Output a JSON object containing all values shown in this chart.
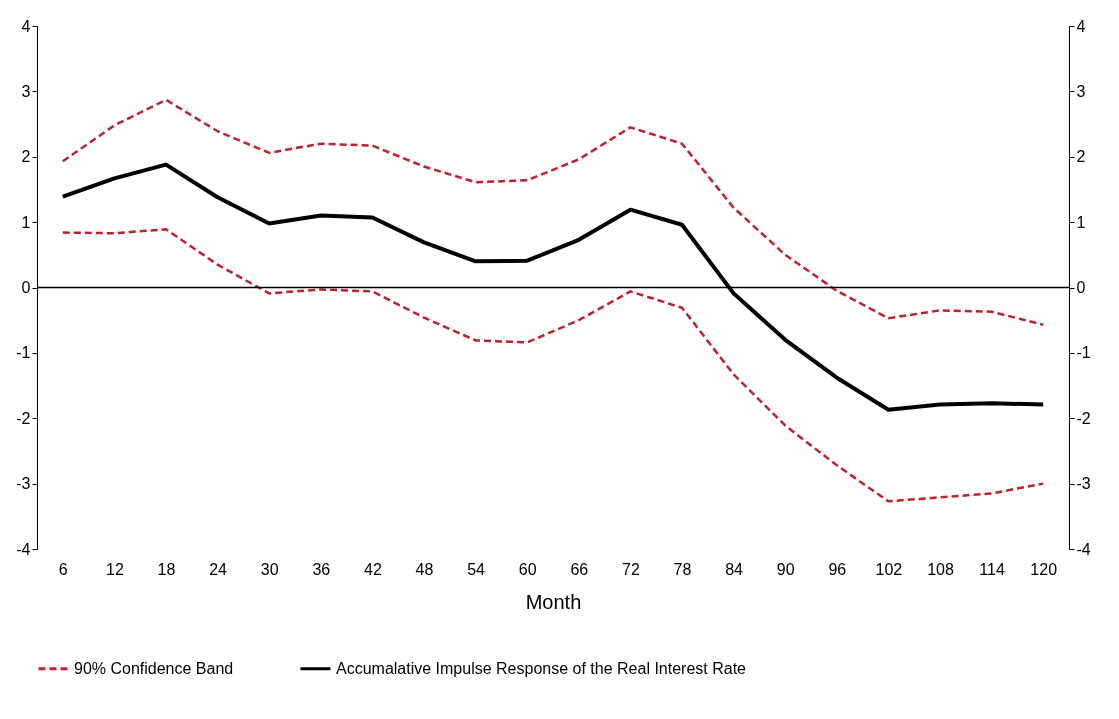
{
  "chart_data": {
    "type": "line",
    "xlabel": "Month",
    "categories": [
      "6",
      "12",
      "18",
      "24",
      "30",
      "36",
      "42",
      "48",
      "54",
      "60",
      "66",
      "72",
      "78",
      "84",
      "90",
      "96",
      "102",
      "108",
      "114",
      "120"
    ],
    "series": [
      {
        "name": "90% Confidence Band",
        "color": "#c0202a",
        "line_style": "dashed",
        "values": [
          1.93,
          2.48,
          2.87,
          2.39,
          2.06,
          2.2,
          2.17,
          1.85,
          1.61,
          1.64,
          1.96,
          2.45,
          2.2,
          1.22,
          0.5,
          -0.05,
          -0.47,
          -0.35,
          -0.37,
          -0.57
        ]
      },
      {
        "color": "#c0202a",
        "line_style": "dashed",
        "values": [
          0.84,
          0.83,
          0.89,
          0.35,
          -0.09,
          -0.03,
          -0.06,
          -0.46,
          -0.81,
          -0.84,
          -0.5,
          -0.06,
          -0.31,
          -1.33,
          -2.11,
          -2.72,
          -3.27,
          -3.21,
          -3.15,
          -3.0
        ]
      },
      {
        "name": "Accumalative Impulse Response of the Real Interest Rate",
        "color": "#000000",
        "line_style": "solid",
        "values": [
          1.39,
          1.67,
          1.88,
          1.38,
          0.98,
          1.1,
          1.07,
          0.69,
          0.4,
          0.41,
          0.73,
          1.19,
          0.96,
          -0.09,
          -0.8,
          -1.38,
          -1.87,
          -1.79,
          -1.77,
          -1.79
        ]
      }
    ],
    "ylim": [
      -4,
      4
    ],
    "yticks": [
      -4,
      -3,
      -2,
      -1,
      0,
      1,
      2,
      3,
      4
    ],
    "y2lim": [
      -4,
      4
    ],
    "y2ticks": [
      -4,
      -3,
      -2,
      -1,
      0,
      1,
      2,
      3,
      4
    ],
    "ref_lines": [
      {
        "axis": "y2",
        "value": 0,
        "color": "#000000"
      }
    ],
    "grid": false,
    "legend": "bottom"
  }
}
